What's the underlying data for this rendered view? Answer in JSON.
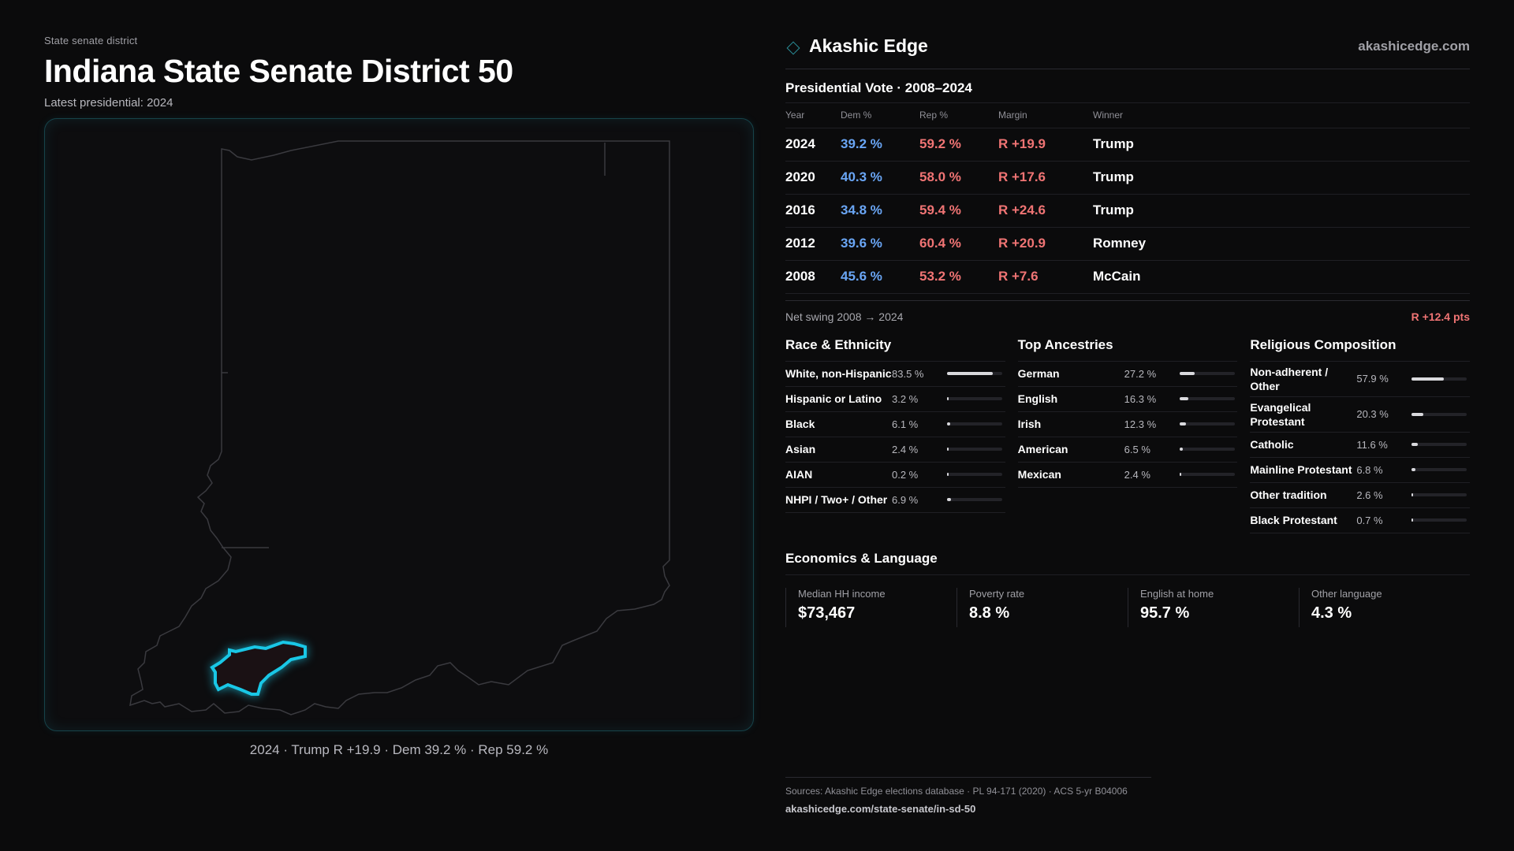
{
  "header": {
    "kicker": "State senate district",
    "title": "Indiana State Senate District 50",
    "latest": "Latest presidential: 2024"
  },
  "map": {
    "caption": "2024 · Trump R +19.9 · Dem 39.2 % · Rep 59.2 %",
    "outline_color": "#3a3a3f",
    "district_color": "#19c7e6"
  },
  "brand": {
    "name": "Akashic Edge",
    "url": "akashicedge.com"
  },
  "presidential": {
    "title": "Presidential Vote · 2008–2024",
    "columns": [
      "Year",
      "Dem %",
      "Rep %",
      "Margin",
      "Winner"
    ],
    "rows": [
      {
        "year": "2024",
        "dem": "39.2 %",
        "rep": "59.2 %",
        "margin": "R +19.9",
        "winner": "Trump"
      },
      {
        "year": "2020",
        "dem": "40.3 %",
        "rep": "58.0 %",
        "margin": "R +17.6",
        "winner": "Trump"
      },
      {
        "year": "2016",
        "dem": "34.8 %",
        "rep": "59.4 %",
        "margin": "R +24.6",
        "winner": "Trump"
      },
      {
        "year": "2012",
        "dem": "39.6 %",
        "rep": "60.4 %",
        "margin": "R +20.9",
        "winner": "Romney"
      },
      {
        "year": "2008",
        "dem": "45.6 %",
        "rep": "53.2 %",
        "margin": "R +7.6",
        "winner": "McCain"
      }
    ],
    "swing_label": "Net swing 2008 → 2024",
    "swing_value": "R +12.4 pts"
  },
  "race": {
    "title": "Race & Ethnicity",
    "items": [
      {
        "name": "White, non-Hispanic",
        "pct": "83.5 %",
        "value": 83.5
      },
      {
        "name": "Hispanic or Latino",
        "pct": "3.2 %",
        "value": 3.2
      },
      {
        "name": "Black",
        "pct": "6.1 %",
        "value": 6.1
      },
      {
        "name": "Asian",
        "pct": "2.4 %",
        "value": 2.4
      },
      {
        "name": "AIAN",
        "pct": "0.2 %",
        "value": 0.2
      },
      {
        "name": "NHPI / Two+ / Other",
        "pct": "6.9 %",
        "value": 6.9
      }
    ]
  },
  "ancestry": {
    "title": "Top Ancestries",
    "items": [
      {
        "name": "German",
        "pct": "27.2 %",
        "value": 27.2
      },
      {
        "name": "English",
        "pct": "16.3 %",
        "value": 16.3
      },
      {
        "name": "Irish",
        "pct": "12.3 %",
        "value": 12.3
      },
      {
        "name": "American",
        "pct": "6.5 %",
        "value": 6.5
      },
      {
        "name": "Mexican",
        "pct": "2.4 %",
        "value": 2.4
      }
    ]
  },
  "religion": {
    "title": "Religious Composition",
    "items": [
      {
        "name": "Non-adherent / Other",
        "pct": "57.9 %",
        "value": 57.9
      },
      {
        "name": "Evangelical Protestant",
        "pct": "20.3 %",
        "value": 20.3
      },
      {
        "name": "Catholic",
        "pct": "11.6 %",
        "value": 11.6
      },
      {
        "name": "Mainline Protestant",
        "pct": "6.8 %",
        "value": 6.8
      },
      {
        "name": "Other tradition",
        "pct": "2.6 %",
        "value": 2.6
      },
      {
        "name": "Black Protestant",
        "pct": "0.7 %",
        "value": 0.7
      }
    ]
  },
  "economics": {
    "title": "Economics & Language",
    "stats": [
      {
        "label": "Median HH income",
        "value": "$73,467"
      },
      {
        "label": "Poverty rate",
        "value": "8.8 %"
      },
      {
        "label": "English at home",
        "value": "95.7 %"
      },
      {
        "label": "Other language",
        "value": "4.3 %"
      }
    ]
  },
  "sources": {
    "line1": "Sources: Akashic Edge elections database · PL 94-171 (2020) · ACS 5-yr B04006",
    "line2": "akashicedge.com/state-senate/in-sd-50"
  }
}
